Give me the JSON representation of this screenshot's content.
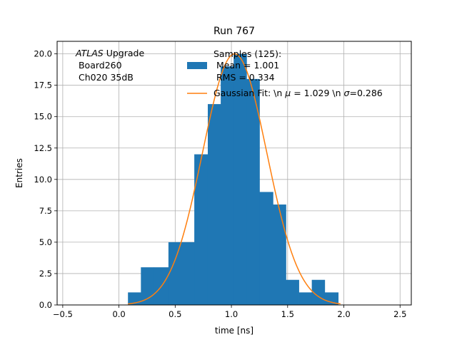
{
  "chart_data": {
    "type": "histogram+line",
    "title": "Run 767",
    "xlabel": "time [ns]",
    "ylabel": "Entries",
    "xlim": [
      -0.55,
      2.6
    ],
    "ylim": [
      0,
      21
    ],
    "grid": true,
    "xticks": [
      "-0.5",
      "0.0",
      "0.5",
      "1.0",
      "1.5",
      "2.0",
      "2.5"
    ],
    "yticks": [
      "0.0",
      "2.5",
      "5.0",
      "7.5",
      "10.0",
      "12.5",
      "15.0",
      "17.5",
      "20.0"
    ],
    "annotation": {
      "line1_italic": "ATLAS",
      "line1_rest": " Upgrade",
      "line2": " Board260",
      "line3": " Ch020 35dB"
    },
    "histogram": {
      "color": "#1f77b4",
      "bin_edges": [
        0.08,
        0.195,
        0.31,
        0.44,
        0.555,
        0.67,
        0.79,
        0.905,
        1.02,
        1.135,
        1.25,
        1.37,
        1.485,
        1.6,
        1.715,
        1.83,
        1.95
      ],
      "counts": [
        1,
        3,
        3,
        5,
        5,
        12,
        16,
        19,
        20,
        18,
        9,
        8,
        2,
        1,
        2,
        1
      ],
      "legend_line1": "Samples (125):",
      "legend_line2": " Mean = 1.001",
      "legend_line3": " RMS = 0.334"
    },
    "fit": {
      "color": "#ff7f0e",
      "amplitude": 20.0,
      "mu": 1.029,
      "sigma": 0.286,
      "x_range": [
        0.08,
        1.97
      ],
      "legend": "Gaussian Fit: \\n μ = 1.029 \\n σ=0.286",
      "legend_plain": "Gaussian Fit: \\n ",
      "legend_mu": "μ",
      "legend_mid": " = 1.029 \\n ",
      "legend_sigma": "σ",
      "legend_end": "=0.286"
    }
  }
}
